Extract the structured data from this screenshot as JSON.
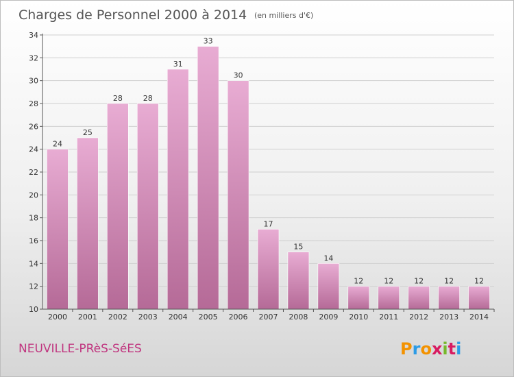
{
  "header": {
    "title": "Charges de Personnel 2000 à 2014",
    "unit": "(en milliers d'€)"
  },
  "footer": {
    "place": "NEUVILLE-PRèS-SéES",
    "logo": "Proxiti"
  },
  "colors": {
    "bar_top": "#e8acd3",
    "bar_bottom": "#b56a97",
    "grid": "#cfcfcf",
    "axis": "#555555",
    "place": "#c0357f",
    "logo_letters": [
      "#f39200",
      "#2b9be6",
      "#f39200",
      "#d81b60",
      "#76b82a",
      "#d81b60",
      "#2b9be6"
    ]
  },
  "chart_data": {
    "type": "bar",
    "title": "Charges de Personnel 2000 à 2014",
    "subtitle": "(en milliers d'€)",
    "categories": [
      "2000",
      "2001",
      "2002",
      "2003",
      "2004",
      "2005",
      "2006",
      "2007",
      "2008",
      "2009",
      "2010",
      "2011",
      "2012",
      "2013",
      "2014"
    ],
    "values": [
      24,
      25,
      28,
      28,
      31,
      33,
      30,
      17,
      15,
      14,
      12,
      12,
      12,
      12,
      12
    ],
    "ylim": [
      10,
      34
    ],
    "yticks": [
      10,
      12,
      14,
      16,
      18,
      20,
      22,
      24,
      26,
      28,
      30,
      32,
      34
    ],
    "grid": true,
    "legend": "none"
  }
}
